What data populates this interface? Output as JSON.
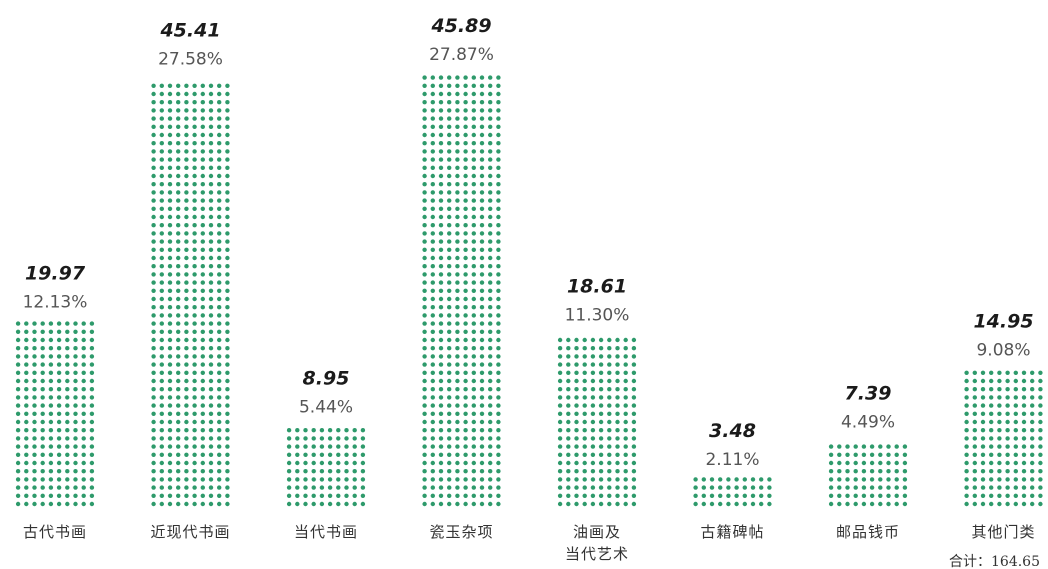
{
  "chart_data": {
    "type": "bar",
    "title": "",
    "xlabel": "",
    "ylabel": "",
    "categories": [
      [
        "古代书画"
      ],
      [
        "近现代书画"
      ],
      [
        "当代书画"
      ],
      [
        "瓷玉杂项"
      ],
      [
        "油画及",
        "当代艺术"
      ],
      [
        "古籍碑帖"
      ],
      [
        "邮品钱币"
      ],
      [
        "其他门类"
      ]
    ],
    "values": [
      19.97,
      45.41,
      8.95,
      45.89,
      18.61,
      3.48,
      7.39,
      14.95
    ],
    "value_labels": [
      "19.97",
      "45.41",
      "8.95",
      "45.89",
      "18.61",
      "3.48",
      "7.39",
      "14.95"
    ],
    "percent_labels": [
      "12.13%",
      "27.58%",
      "5.44%",
      "27.87%",
      "11.30%",
      "2.11%",
      "4.49%",
      "9.08%"
    ],
    "total_label": "合计：164.65",
    "ylim": [
      0,
      46
    ],
    "grid": false,
    "colors": {
      "dots": "#2e9a6b",
      "value_text": "#1b1b1b",
      "percent_text": "#555555",
      "category_text": "#333333"
    }
  }
}
